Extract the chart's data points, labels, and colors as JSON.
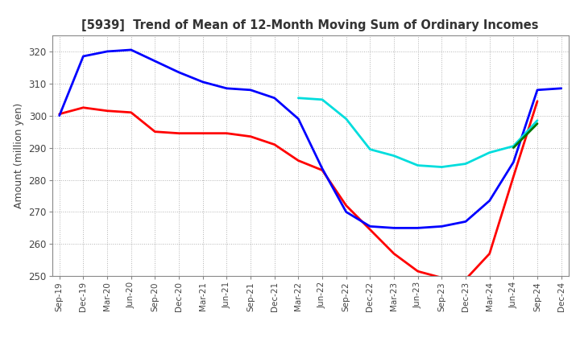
{
  "title": "[5939]  Trend of Mean of 12-Month Moving Sum of Ordinary Incomes",
  "ylabel": "Amount (million yen)",
  "ylim": [
    250,
    325
  ],
  "yticks": [
    250,
    260,
    270,
    280,
    290,
    300,
    310,
    320
  ],
  "background_color": "#ffffff",
  "grid_color": "#aaaaaa",
  "series": {
    "3 Years": {
      "color": "#ff0000",
      "x": [
        "Sep-19",
        "Dec-19",
        "Mar-20",
        "Jun-20",
        "Sep-20",
        "Dec-20",
        "Mar-21",
        "Jun-21",
        "Sep-21",
        "Dec-21",
        "Mar-22",
        "Jun-22",
        "Sep-22",
        "Dec-22",
        "Mar-23",
        "Jun-23",
        "Sep-23",
        "Dec-23",
        "Mar-24",
        "Jun-24",
        "Sep-24"
      ],
      "y": [
        300.5,
        302.5,
        301.5,
        301.0,
        295.0,
        294.5,
        294.5,
        294.5,
        293.5,
        291.0,
        286.0,
        283.0,
        272.0,
        264.5,
        257.0,
        251.5,
        249.5,
        249.0,
        257.0,
        281.0,
        304.5
      ]
    },
    "5 Years": {
      "color": "#0000ff",
      "x": [
        "Sep-19",
        "Dec-19",
        "Mar-20",
        "Jun-20",
        "Sep-20",
        "Dec-20",
        "Mar-21",
        "Jun-21",
        "Sep-21",
        "Dec-21",
        "Mar-22",
        "Jun-22",
        "Sep-22",
        "Dec-22",
        "Mar-23",
        "Jun-23",
        "Sep-23",
        "Dec-23",
        "Mar-24",
        "Jun-24",
        "Sep-24",
        "Dec-24"
      ],
      "y": [
        300.0,
        318.5,
        320.0,
        320.5,
        317.0,
        313.5,
        310.5,
        308.5,
        308.0,
        305.5,
        299.0,
        283.5,
        270.0,
        265.5,
        265.0,
        265.0,
        265.5,
        267.0,
        273.5,
        285.5,
        308.0,
        308.5
      ]
    },
    "7 Years": {
      "color": "#00dddd",
      "x": [
        "Mar-22",
        "Jun-22",
        "Sep-22",
        "Dec-22",
        "Mar-23",
        "Jun-23",
        "Sep-23",
        "Dec-23",
        "Mar-24",
        "Jun-24",
        "Sep-24"
      ],
      "y": [
        305.5,
        305.0,
        299.0,
        289.5,
        287.5,
        284.5,
        284.0,
        285.0,
        288.5,
        290.5,
        298.5
      ]
    },
    "10 Years": {
      "color": "#007700",
      "x": [
        "Jun-24",
        "Sep-24"
      ],
      "y": [
        290.0,
        297.5
      ]
    }
  },
  "x_all_labels": [
    "Sep-19",
    "Dec-19",
    "Mar-20",
    "Jun-20",
    "Sep-20",
    "Dec-20",
    "Mar-21",
    "Jun-21",
    "Sep-21",
    "Dec-21",
    "Mar-22",
    "Jun-22",
    "Sep-22",
    "Dec-22",
    "Mar-23",
    "Jun-23",
    "Sep-23",
    "Dec-23",
    "Mar-24",
    "Jun-24",
    "Sep-24",
    "Dec-24"
  ]
}
